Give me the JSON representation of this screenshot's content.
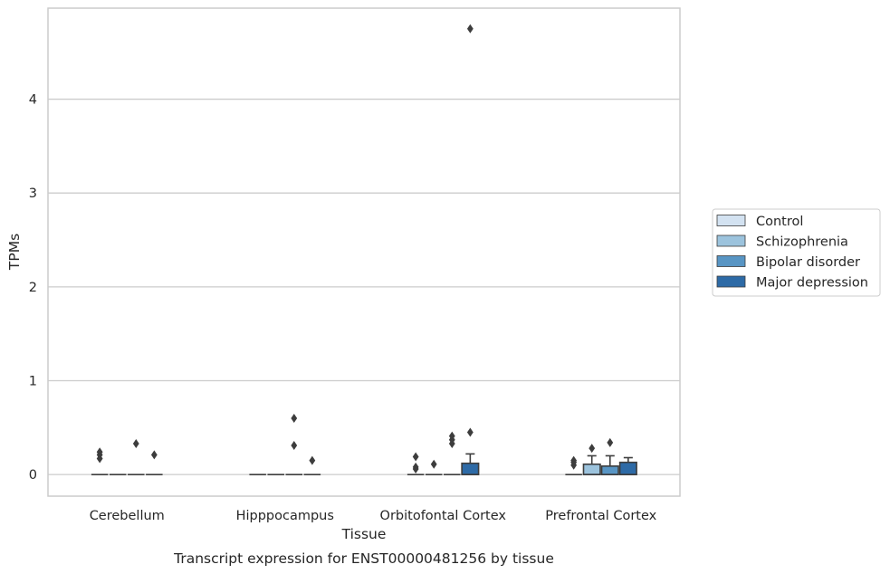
{
  "chart_data": {
    "type": "box",
    "caption": "Transcript expression for ENST00000481256 by tissue",
    "xlabel": "Tissue",
    "ylabel": "TPMs",
    "ylim": [
      -0.23,
      4.97
    ],
    "yticks": [
      0,
      1,
      2,
      3,
      4
    ],
    "grid": "horizontal",
    "legend_position": "right",
    "categories": [
      "Cerebellum",
      "Hipppocampus",
      "Orbitofontal Cortex",
      "Prefrontal Cortex"
    ],
    "series": [
      {
        "name": "Control",
        "color": "#d3e2f1",
        "boxes": [
          {
            "q1": 0,
            "median": 0,
            "q3": 0,
            "whisker_low": 0,
            "whisker_high": 0,
            "outliers": [
              0.17,
              0.21,
              0.24
            ]
          },
          {
            "q1": 0,
            "median": 0,
            "q3": 0,
            "whisker_low": 0,
            "whisker_high": 0,
            "outliers": []
          },
          {
            "q1": 0,
            "median": 0,
            "q3": 0,
            "whisker_low": 0,
            "whisker_high": 0,
            "outliers": [
              0.06,
              0.08,
              0.19
            ]
          },
          {
            "q1": 0,
            "median": 0,
            "q3": 0,
            "whisker_low": 0,
            "whisker_high": 0,
            "outliers": [
              0.1,
              0.13,
              0.15
            ]
          }
        ]
      },
      {
        "name": "Schizophrenia",
        "color": "#9cc3dd",
        "boxes": [
          {
            "q1": 0,
            "median": 0,
            "q3": 0,
            "whisker_low": 0,
            "whisker_high": 0,
            "outliers": []
          },
          {
            "q1": 0,
            "median": 0,
            "q3": 0,
            "whisker_low": 0,
            "whisker_high": 0,
            "outliers": []
          },
          {
            "q1": 0,
            "median": 0,
            "q3": 0,
            "whisker_low": 0,
            "whisker_high": 0,
            "outliers": [
              0.11
            ]
          },
          {
            "q1": 0,
            "median": 0,
            "q3": 0.11,
            "whisker_low": 0,
            "whisker_high": 0.2,
            "outliers": [
              0.28
            ]
          }
        ]
      },
      {
        "name": "Bipolar disorder",
        "color": "#5895c4",
        "boxes": [
          {
            "q1": 0,
            "median": 0,
            "q3": 0,
            "whisker_low": 0,
            "whisker_high": 0,
            "outliers": [
              0.33
            ]
          },
          {
            "q1": 0,
            "median": 0,
            "q3": 0,
            "whisker_low": 0,
            "whisker_high": 0,
            "outliers": [
              0.31,
              0.6
            ]
          },
          {
            "q1": 0,
            "median": 0,
            "q3": 0,
            "whisker_low": 0,
            "whisker_high": 0,
            "outliers": [
              0.33,
              0.37,
              0.41
            ]
          },
          {
            "q1": 0,
            "median": 0,
            "q3": 0.09,
            "whisker_low": 0,
            "whisker_high": 0.2,
            "outliers": [
              0.34
            ]
          }
        ]
      },
      {
        "name": "Major depression",
        "color": "#2d6aa6",
        "boxes": [
          {
            "q1": 0,
            "median": 0,
            "q3": 0,
            "whisker_low": 0,
            "whisker_high": 0,
            "outliers": [
              0.21
            ]
          },
          {
            "q1": 0,
            "median": 0,
            "q3": 0,
            "whisker_low": 0,
            "whisker_high": 0,
            "outliers": [
              0.15
            ]
          },
          {
            "q1": 0,
            "median": 0,
            "q3": 0.12,
            "whisker_low": 0,
            "whisker_high": 0.22,
            "outliers": [
              0.45,
              4.75
            ]
          },
          {
            "q1": 0,
            "median": 0,
            "q3": 0.13,
            "whisker_low": 0,
            "whisker_high": 0.18,
            "outliers": []
          }
        ]
      }
    ]
  }
}
